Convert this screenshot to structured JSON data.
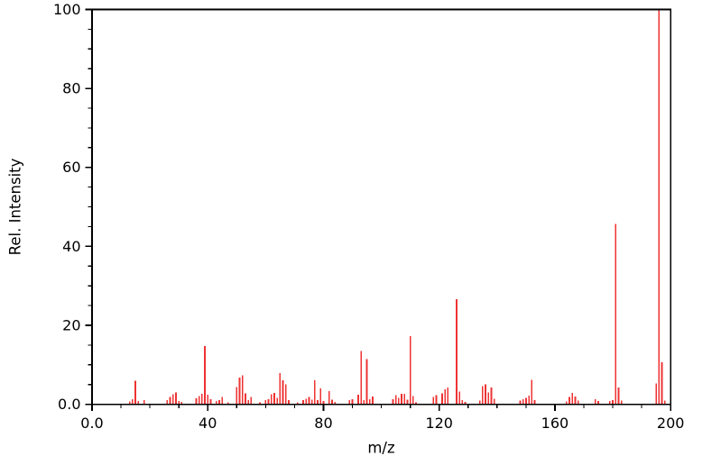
{
  "page": {
    "background": "#ffffff",
    "frame_color": "#000000",
    "text_color": "#000000"
  },
  "chart_data": {
    "type": "bar",
    "subtype": "mass-spectrum-stick-plot",
    "title": "",
    "xlabel": "m/z",
    "ylabel": "Rel. Intensity",
    "xlim": [
      0,
      200
    ],
    "ylim": [
      0,
      100
    ],
    "grid": false,
    "legend": "none",
    "bar_color": "#ee3333",
    "x_major_ticks": [
      0,
      40,
      80,
      120,
      160,
      200
    ],
    "x_major_tick_labels": [
      "0.0",
      "40",
      "80",
      "120",
      "160",
      "200"
    ],
    "x_minor_tick_step": 10,
    "y_major_ticks": [
      0,
      20,
      40,
      60,
      80,
      100
    ],
    "y_major_tick_labels": [
      "0.0",
      "20",
      "40",
      "60",
      "80",
      "100"
    ],
    "y_minor_tick_step": 5,
    "peaks_format": [
      "mz",
      "rel_intensity_percent"
    ],
    "peaks": [
      [
        13,
        0.7
      ],
      [
        14,
        1.3
      ],
      [
        15,
        6.0
      ],
      [
        16,
        0.8
      ],
      [
        18,
        1.1
      ],
      [
        26,
        1.0
      ],
      [
        27,
        1.9
      ],
      [
        28,
        2.5
      ],
      [
        29,
        3.0
      ],
      [
        30,
        0.8
      ],
      [
        31,
        0.6
      ],
      [
        36,
        1.5
      ],
      [
        37,
        2.1
      ],
      [
        38,
        2.7
      ],
      [
        39,
        14.7
      ],
      [
        40,
        2.4
      ],
      [
        41,
        1.3
      ],
      [
        43,
        0.8
      ],
      [
        44,
        1.0
      ],
      [
        45,
        1.8
      ],
      [
        47,
        0.5
      ],
      [
        50,
        4.4
      ],
      [
        51,
        6.8
      ],
      [
        52,
        7.3
      ],
      [
        53,
        2.8
      ],
      [
        54,
        1.1
      ],
      [
        55,
        1.8
      ],
      [
        58,
        0.5
      ],
      [
        60,
        1.0
      ],
      [
        61,
        1.3
      ],
      [
        62,
        2.5
      ],
      [
        63,
        2.9
      ],
      [
        64,
        1.6
      ],
      [
        65,
        7.9
      ],
      [
        66,
        6.1
      ],
      [
        67,
        5.0
      ],
      [
        68,
        1.0
      ],
      [
        71,
        0.5
      ],
      [
        73,
        1.0
      ],
      [
        74,
        1.4
      ],
      [
        75,
        1.8
      ],
      [
        76,
        1.2
      ],
      [
        77,
        6.1
      ],
      [
        78,
        1.0
      ],
      [
        79,
        4.0
      ],
      [
        80,
        0.8
      ],
      [
        82,
        3.3
      ],
      [
        83,
        1.2
      ],
      [
        84,
        0.6
      ],
      [
        89,
        1.0
      ],
      [
        90,
        1.3
      ],
      [
        92,
        2.4
      ],
      [
        93,
        13.5
      ],
      [
        94,
        1.0
      ],
      [
        95,
        11.4
      ],
      [
        96,
        1.3
      ],
      [
        97,
        2.0
      ],
      [
        104,
        1.3
      ],
      [
        105,
        2.3
      ],
      [
        106,
        1.6
      ],
      [
        107,
        2.7
      ],
      [
        108,
        2.7
      ],
      [
        109,
        1.2
      ],
      [
        110,
        17.2
      ],
      [
        111,
        2.1
      ],
      [
        112,
        0.5
      ],
      [
        118,
        1.9
      ],
      [
        119,
        2.3
      ],
      [
        121,
        2.8
      ],
      [
        122,
        3.8
      ],
      [
        123,
        4.3
      ],
      [
        126,
        26.6
      ],
      [
        127,
        3.2
      ],
      [
        128,
        1.0
      ],
      [
        129,
        0.6
      ],
      [
        134,
        0.9
      ],
      [
        135,
        4.6
      ],
      [
        136,
        5.0
      ],
      [
        137,
        3.0
      ],
      [
        138,
        4.3
      ],
      [
        139,
        1.4
      ],
      [
        148,
        0.9
      ],
      [
        149,
        1.3
      ],
      [
        150,
        1.6
      ],
      [
        151,
        2.2
      ],
      [
        152,
        6.2
      ],
      [
        153,
        1.1
      ],
      [
        164,
        0.7
      ],
      [
        165,
        1.9
      ],
      [
        166,
        2.9
      ],
      [
        167,
        2.0
      ],
      [
        168,
        0.9
      ],
      [
        174,
        1.3
      ],
      [
        175,
        0.8
      ],
      [
        179,
        0.8
      ],
      [
        180,
        1.0
      ],
      [
        181,
        45.7
      ],
      [
        182,
        4.3
      ],
      [
        183,
        0.9
      ],
      [
        195,
        5.3
      ],
      [
        196,
        100.0
      ],
      [
        197,
        10.6
      ],
      [
        198,
        0.9
      ]
    ]
  }
}
